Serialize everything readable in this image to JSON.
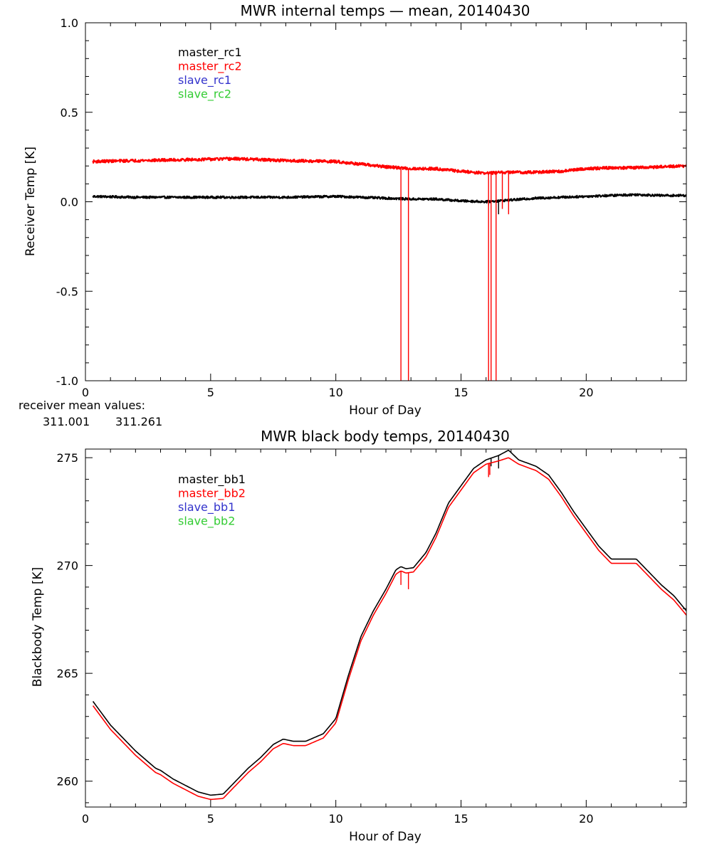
{
  "colors": {
    "master_1": "#000000",
    "master_2": "#ff0000",
    "slave_1": "#3333cc",
    "slave_2": "#33cc33",
    "axis": "#000000",
    "background": "#ffffff"
  },
  "receiver_means": {
    "label": "receiver mean values:",
    "values": [
      "311.001",
      "311.261"
    ]
  },
  "chart_data": [
    {
      "type": "line",
      "title": "MWR internal temps — mean, 20140430",
      "xlabel": "Hour of Day",
      "ylabel": "Receiver Temp [K]",
      "xlim": [
        0,
        24
      ],
      "ylim": [
        -1.0,
        1.0
      ],
      "xticks": [
        "0",
        "5",
        "10",
        "15",
        "20"
      ],
      "yticks": [
        "-1.0",
        "-0.5",
        "0.0",
        "0.5",
        "1.0"
      ],
      "grid": false,
      "legend_position": "top-left",
      "legend": [
        "master_rc1",
        "master_rc2",
        "slave_rc1",
        "slave_rc2"
      ],
      "series": [
        {
          "name": "master_rc1",
          "color": "#000000",
          "noise": 0.006,
          "x": [
            0.3,
            2,
            4,
            6,
            8,
            10,
            12,
            13,
            14,
            15,
            16,
            17,
            18,
            19,
            20,
            21,
            22,
            23,
            24
          ],
          "y": [
            0.03,
            0.025,
            0.025,
            0.025,
            0.025,
            0.03,
            0.02,
            0.015,
            0.015,
            0.005,
            0.0,
            0.01,
            0.02,
            0.025,
            0.03,
            0.035,
            0.04,
            0.035,
            0.035
          ],
          "spikes": [
            {
              "x": 16.1,
              "y": -0.02
            },
            {
              "x": 16.5,
              "y": -0.07
            }
          ]
        },
        {
          "name": "master_rc2",
          "color": "#ff0000",
          "noise": 0.008,
          "x": [
            0.3,
            2,
            4,
            6,
            8,
            10,
            11,
            12,
            13,
            14,
            15,
            16,
            17,
            18,
            19,
            20,
            21,
            22,
            23,
            24
          ],
          "y": [
            0.225,
            0.23,
            0.235,
            0.24,
            0.23,
            0.225,
            0.21,
            0.195,
            0.185,
            0.185,
            0.17,
            0.16,
            0.165,
            0.165,
            0.17,
            0.185,
            0.19,
            0.19,
            0.195,
            0.2
          ],
          "spikes": [
            {
              "x": 12.6,
              "y": -1.0
            },
            {
              "x": 12.9,
              "y": -1.0
            },
            {
              "x": 16.1,
              "y": -1.0
            },
            {
              "x": 16.2,
              "y": -1.0
            },
            {
              "x": 16.4,
              "y": -1.0
            },
            {
              "x": 16.65,
              "y": -0.04
            },
            {
              "x": 16.9,
              "y": -0.07
            }
          ]
        },
        {
          "name": "slave_rc1",
          "color": "#3333cc",
          "x": [],
          "y": []
        },
        {
          "name": "slave_rc2",
          "color": "#33cc33",
          "x": [],
          "y": []
        }
      ]
    },
    {
      "type": "line",
      "title": "MWR black body temps, 20140430",
      "xlabel": "Hour of Day",
      "ylabel": "Blackbody Temp [K]",
      "xlim": [
        0,
        24
      ],
      "ylim": [
        258.8,
        275.4
      ],
      "xticks": [
        "0",
        "5",
        "10",
        "15",
        "20"
      ],
      "yticks": [
        "260",
        "265",
        "270",
        "275"
      ],
      "grid": false,
      "legend_position": "top-left",
      "legend": [
        "master_bb1",
        "master_bb2",
        "slave_bb1",
        "slave_bb2"
      ],
      "series": [
        {
          "name": "master_bb1",
          "color": "#000000",
          "noise": 0,
          "x": [
            0.3,
            1,
            2,
            2.8,
            3,
            3.5,
            4,
            4.5,
            5,
            5.5,
            6,
            6.5,
            7,
            7.5,
            7.9,
            8.3,
            8.8,
            9.5,
            10,
            10.5,
            11,
            11.5,
            12,
            12.4,
            12.6,
            12.8,
            13.1,
            13.6,
            14,
            14.5,
            15,
            15.5,
            16,
            16.5,
            16.9,
            17.3,
            18,
            18.5,
            19,
            19.5,
            20,
            20.5,
            21,
            21.5,
            22,
            22.5,
            23,
            23.5,
            24
          ],
          "y": [
            263.7,
            262.6,
            261.4,
            260.6,
            260.5,
            260.1,
            259.8,
            259.5,
            259.35,
            259.4,
            260.0,
            260.6,
            261.1,
            261.7,
            261.95,
            261.85,
            261.85,
            262.2,
            262.9,
            264.9,
            266.7,
            267.9,
            268.9,
            269.8,
            269.95,
            269.85,
            269.9,
            270.6,
            271.5,
            272.9,
            273.7,
            274.5,
            274.9,
            275.1,
            275.35,
            274.9,
            274.6,
            274.2,
            273.4,
            272.5,
            271.7,
            270.9,
            270.3,
            270.3,
            270.3,
            269.7,
            269.1,
            268.6,
            267.9
          ],
          "spikes": [
            {
              "x": 16.2,
              "y": 274.6
            },
            {
              "x": 16.5,
              "y": 274.5
            }
          ]
        },
        {
          "name": "master_bb2",
          "color": "#ff0000",
          "noise": 0,
          "x": [
            0.3,
            1,
            2,
            2.8,
            3,
            3.5,
            4,
            4.5,
            5,
            5.5,
            6,
            6.5,
            7,
            7.5,
            7.9,
            8.3,
            8.8,
            9.5,
            10,
            10.5,
            11,
            11.5,
            12,
            12.4,
            12.6,
            12.8,
            13.1,
            13.6,
            14,
            14.5,
            15,
            15.5,
            16,
            16.5,
            16.9,
            17.3,
            18,
            18.5,
            19,
            19.5,
            20,
            20.5,
            21,
            21.5,
            22,
            22.5,
            23,
            23.5,
            24
          ],
          "y": [
            263.5,
            262.4,
            261.2,
            260.4,
            260.3,
            259.9,
            259.6,
            259.3,
            259.15,
            259.2,
            259.8,
            260.4,
            260.9,
            261.5,
            261.75,
            261.65,
            261.65,
            262.0,
            262.7,
            264.7,
            266.5,
            267.7,
            268.7,
            269.6,
            269.75,
            269.65,
            269.7,
            270.4,
            271.3,
            272.7,
            273.5,
            274.3,
            274.7,
            274.85,
            275.0,
            274.7,
            274.4,
            274.0,
            273.2,
            272.3,
            271.5,
            270.7,
            270.1,
            270.1,
            270.1,
            269.5,
            268.9,
            268.4,
            267.7
          ],
          "spikes": [
            {
              "x": 12.6,
              "y": 269.1
            },
            {
              "x": 12.9,
              "y": 268.9
            },
            {
              "x": 16.1,
              "y": 274.1
            },
            {
              "x": 16.15,
              "y": 274.2
            }
          ]
        },
        {
          "name": "slave_bb1",
          "color": "#3333cc",
          "x": [],
          "y": []
        },
        {
          "name": "slave_bb2",
          "color": "#33cc33",
          "x": [],
          "y": []
        }
      ]
    }
  ]
}
